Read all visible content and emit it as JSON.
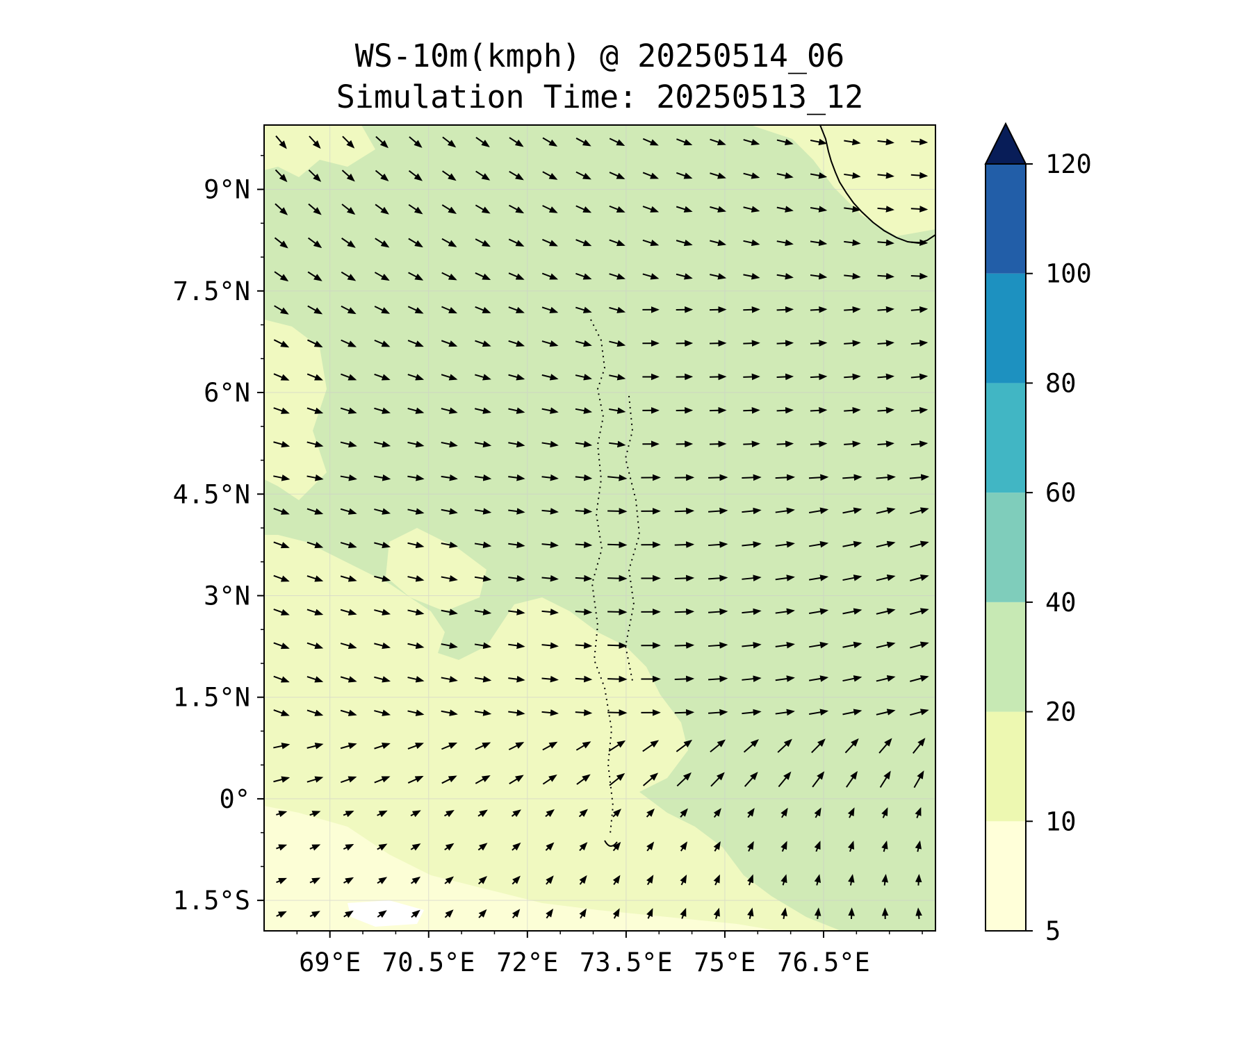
{
  "title": {
    "line1": "WS-10m(kmph) @ 20250514_06",
    "line2": "Simulation Time: 20250513_12"
  },
  "map": {
    "lon_range": [
      68.0,
      78.2
    ],
    "lat_range": [
      -1.95,
      9.95
    ],
    "lon_ticks": [
      {
        "value": 69.0,
        "label": "69°E"
      },
      {
        "value": 70.5,
        "label": "70.5°E"
      },
      {
        "value": 72.0,
        "label": "72°E"
      },
      {
        "value": 73.5,
        "label": "73.5°E"
      },
      {
        "value": 75.0,
        "label": "75°E"
      },
      {
        "value": 76.5,
        "label": "76.5°E"
      }
    ],
    "lat_ticks": [
      {
        "value": 9.0,
        "label": "9°N"
      },
      {
        "value": 7.5,
        "label": "7.5°N"
      },
      {
        "value": 6.0,
        "label": "6°N"
      },
      {
        "value": 4.5,
        "label": "4.5°N"
      },
      {
        "value": 3.0,
        "label": "3°N"
      },
      {
        "value": 1.5,
        "label": "1.5°N"
      },
      {
        "value": 0.0,
        "label": "0°"
      },
      {
        "value": -1.5,
        "label": "1.5°S"
      }
    ],
    "gridlines": true,
    "field_colors": {
      "light": "#f0f9c0",
      "mid": "#d0eab6",
      "pale": "#fcfed6"
    }
  },
  "colorbar": {
    "levels": [
      5,
      10,
      20,
      40,
      60,
      80,
      100,
      120
    ],
    "tick_labels": [
      "5",
      "10",
      "20",
      "40",
      "60",
      "80",
      "100",
      "120"
    ],
    "colors": [
      "#ffffd9",
      "#edf8b1",
      "#c7e9b4",
      "#7fcdbb",
      "#41b6c4",
      "#1d91c0",
      "#225ea8",
      "#253494"
    ],
    "extend_color": "#081d58",
    "extend": "max"
  },
  "wind_field": {
    "description_units": "kmph",
    "cols": 20,
    "rows": 24
  }
}
